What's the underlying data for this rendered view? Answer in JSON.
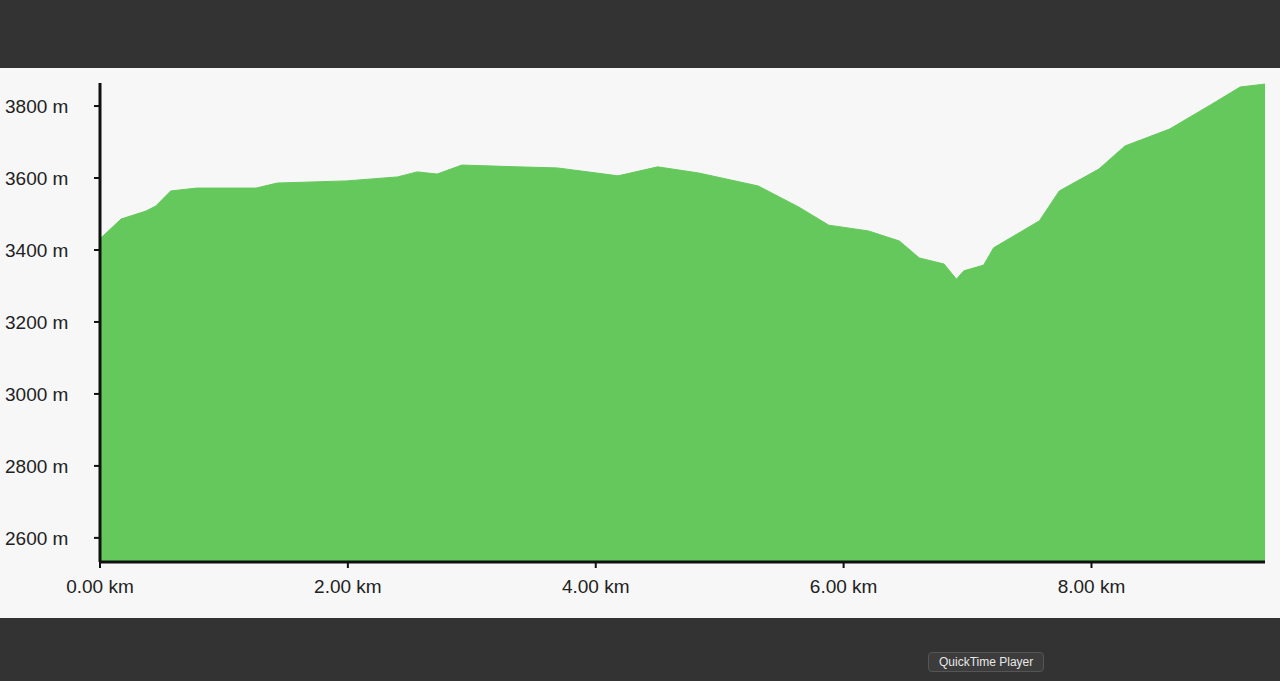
{
  "chart_data": {
    "type": "area",
    "x": [
      0,
      0.17,
      0.37,
      0.45,
      0.57,
      0.78,
      1.26,
      1.43,
      1.99,
      2.4,
      2.56,
      2.72,
      2.92,
      3.37,
      3.69,
      4.18,
      4.5,
      4.83,
      5.31,
      5.64,
      5.88,
      6.2,
      6.45,
      6.61,
      6.81,
      6.91,
      6.97,
      7.13,
      7.21,
      7.58,
      7.74,
      8.06,
      8.27,
      8.63,
      8.96,
      9.2,
      9.4
    ],
    "values": [
      3431,
      3486,
      3508,
      3522,
      3564,
      3572,
      3572,
      3586,
      3592,
      3603,
      3617,
      3611,
      3636,
      3631,
      3628,
      3606,
      3631,
      3614,
      3578,
      3519,
      3469,
      3453,
      3425,
      3378,
      3361,
      3319,
      3342,
      3358,
      3406,
      3481,
      3564,
      3625,
      3689,
      3736,
      3803,
      3853,
      3861
    ],
    "color": "#65c85d",
    "xlim": [
      0,
      9.4
    ],
    "xticks": [
      {
        "value": 0,
        "label": "0.00 km"
      },
      {
        "value": 2,
        "label": "2.00 km"
      },
      {
        "value": 4,
        "label": "4.00 km"
      },
      {
        "value": 6,
        "label": "6.00 km"
      },
      {
        "value": 8,
        "label": "8.00 km"
      }
    ],
    "ylim": [
      2533,
      3864
    ],
    "yticks": [
      {
        "value": 2600,
        "label": "2600 m"
      },
      {
        "value": 2800,
        "label": "2800 m"
      },
      {
        "value": 3000,
        "label": "3000 m"
      },
      {
        "value": 3200,
        "label": "3200 m"
      },
      {
        "value": 3400,
        "label": "3400 m"
      },
      {
        "value": 3600,
        "label": "3600 m"
      },
      {
        "value": 3800,
        "label": "3800 m"
      }
    ],
    "grid": false,
    "annotations": [
      "QuickTime Player"
    ]
  }
}
